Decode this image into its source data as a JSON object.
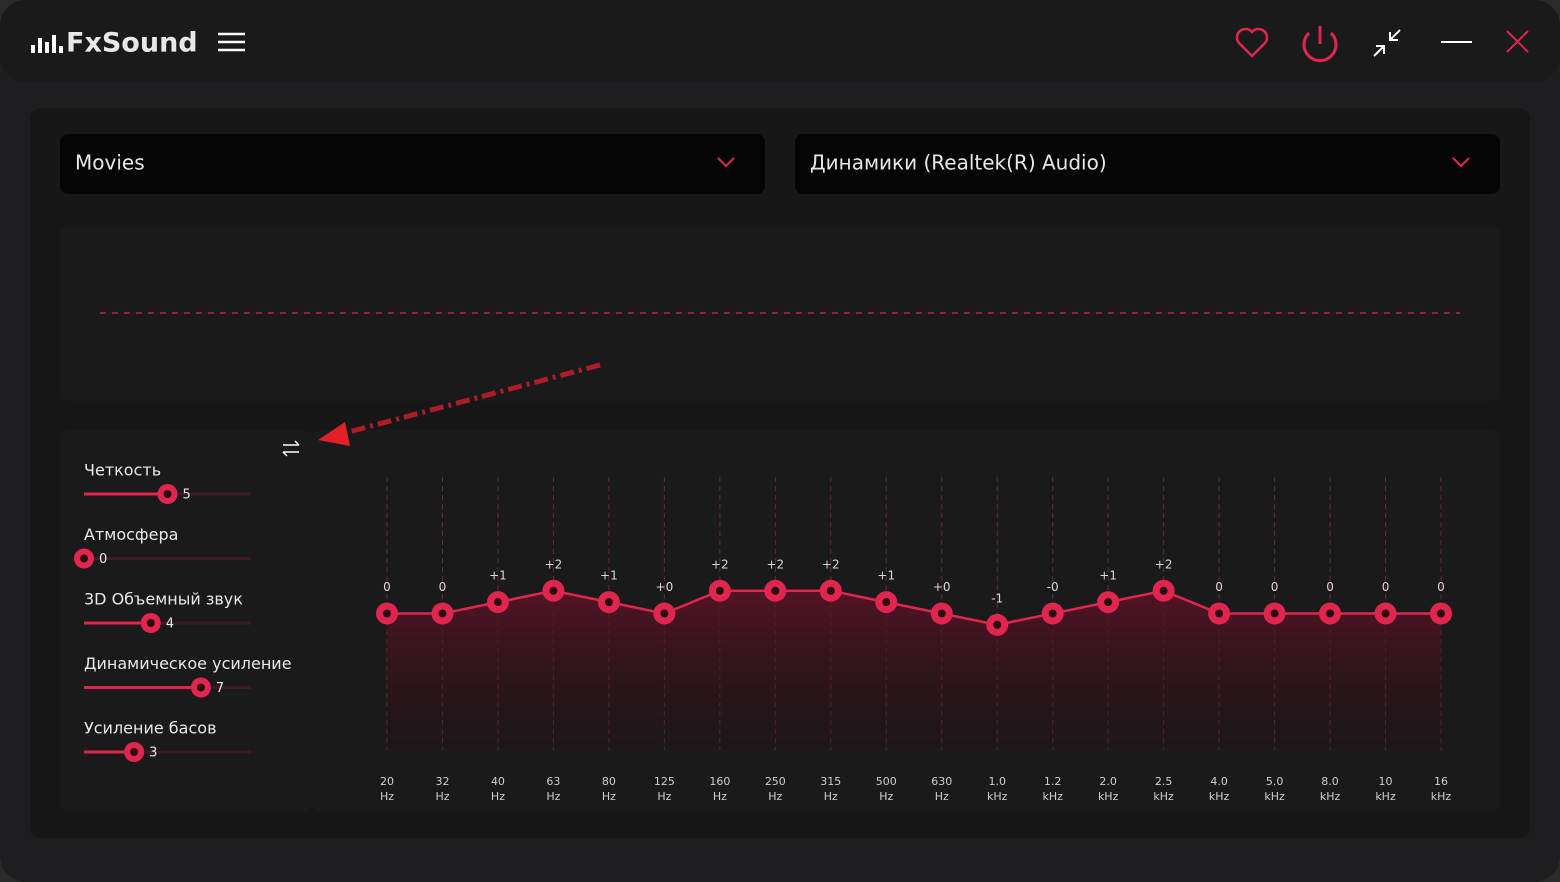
{
  "header": {
    "brand": "FxSound"
  },
  "preset": "Movies",
  "device": "Динамики (Realtek(R) Audio)",
  "effects": {
    "range": [
      0,
      10
    ],
    "items": [
      {
        "label": "Четкость",
        "value": 5
      },
      {
        "label": "Атмосфера",
        "value": 0
      },
      {
        "label": "3D Объемный звук",
        "value": 4
      },
      {
        "label": "Динамическое усиление",
        "value": 7
      },
      {
        "label": "Усиление басов",
        "value": 3
      }
    ]
  },
  "chart_data": {
    "type": "line",
    "categories": [
      "20",
      "32",
      "40",
      "63",
      "80",
      "125",
      "160",
      "250",
      "315",
      "500",
      "630",
      "1.0",
      "1.2",
      "2.0",
      "2.5",
      "4.0",
      "5.0",
      "8.0",
      "10",
      "16"
    ],
    "units": [
      "Hz",
      "Hz",
      "Hz",
      "Hz",
      "Hz",
      "Hz",
      "Hz",
      "Hz",
      "Hz",
      "Hz",
      "Hz",
      "kHz",
      "kHz",
      "kHz",
      "kHz",
      "kHz",
      "kHz",
      "kHz",
      "kHz",
      "kHz"
    ],
    "values": [
      0,
      0,
      1,
      2,
      1,
      0,
      2,
      2,
      2,
      1,
      0,
      -1,
      0,
      1,
      2,
      0,
      0,
      0,
      0,
      0
    ],
    "value_labels": [
      "0",
      "0",
      "+1",
      "+2",
      "+1",
      "+0",
      "+2",
      "+2",
      "+2",
      "+1",
      "+0",
      "-1",
      "-0",
      "+1",
      "+2",
      "0",
      "0",
      "0",
      "0",
      "0"
    ],
    "ylim": [
      -12,
      12
    ],
    "color": "#e0264f"
  }
}
